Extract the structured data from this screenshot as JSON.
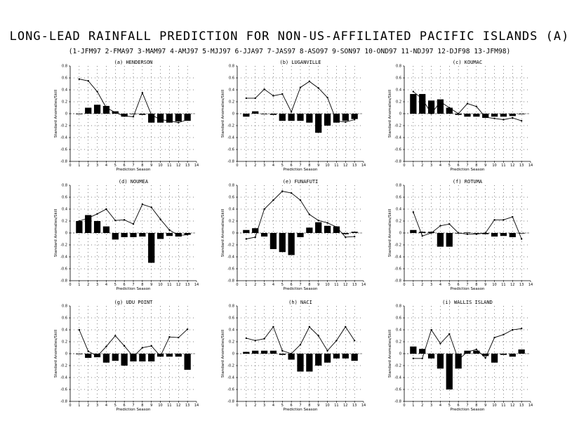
{
  "title": "LONG-LEAD RAINFALL PREDICTION FOR NON-US-AFFILIATED PACIFIC ISLANDS (A)",
  "season_key": "(1-JFM97 2-FMA97 3-MAM97 4-AMJ97 5-MJJ97 6-JJA97 7-JAS97 8-ASO97 9-SON97 10-OND97 11-NDJ97 12-DJF98 13-JFM98)",
  "xlabel": "Prediction Season",
  "ylabel": "Standard Anomalies/Skill",
  "x_ticks": [
    "0",
    "1",
    "2",
    "3",
    "4",
    "5",
    "6",
    "7",
    "8",
    "9",
    "10",
    "11",
    "12",
    "13",
    "14"
  ],
  "colors": {
    "bars": "#000000",
    "line": "#000000",
    "grid": "#000000",
    "background": "#ffffff"
  },
  "chart_data": [
    {
      "type": "bar",
      "title": "(a) HENDERSON",
      "xlim": [
        0,
        14
      ],
      "ylim": [
        -0.8,
        0.8
      ],
      "y_ticks": [
        "-0.8",
        "-0.6",
        "-0.4",
        "-0.2",
        "0",
        "0.2",
        "0.4",
        "0.6",
        "0.8"
      ],
      "x": [
        1,
        2,
        3,
        4,
        5,
        6,
        7,
        8,
        9,
        10,
        11,
        12,
        13
      ],
      "series": [
        {
          "kind": "bar",
          "values": [
            0,
            0.1,
            0.15,
            0.13,
            0.04,
            -0.05,
            0,
            -0.02,
            -0.15,
            -0.15,
            -0.15,
            -0.13,
            -0.12
          ]
        },
        {
          "kind": "line",
          "values": [
            0.58,
            0.55,
            0.37,
            0.1,
            0.02,
            -0.04,
            -0.05,
            0.35,
            -0.02,
            -0.1,
            -0.12,
            -0.15,
            -0.1
          ]
        }
      ]
    },
    {
      "type": "bar",
      "title": "(b) LUGANVILLE",
      "xlim": [
        0,
        14
      ],
      "ylim": [
        -0.8,
        0.8
      ],
      "y_ticks": [
        "-0.8",
        "-0.6",
        "-0.4",
        "-0.2",
        "0",
        "0.2",
        "0.4",
        "0.6",
        "0.8"
      ],
      "x": [
        1,
        2,
        3,
        4,
        5,
        6,
        7,
        8,
        9,
        10,
        11,
        12,
        13
      ],
      "series": [
        {
          "kind": "bar",
          "values": [
            -0.05,
            0.04,
            -0.01,
            -0.02,
            -0.12,
            -0.12,
            -0.12,
            -0.15,
            -0.32,
            -0.2,
            -0.15,
            -0.12,
            -0.09
          ]
        },
        {
          "kind": "line",
          "values": [
            0.26,
            0.26,
            0.41,
            0.3,
            0.33,
            0.03,
            0.44,
            0.54,
            0.43,
            0.27,
            -0.12,
            -0.14,
            -0.1
          ]
        }
      ]
    },
    {
      "type": "bar",
      "title": "(c) KOUMAC",
      "xlim": [
        0,
        14
      ],
      "ylim": [
        -0.8,
        0.8
      ],
      "y_ticks": [
        "-0.8",
        "-0.6",
        "-0.4",
        "-0.2",
        "0",
        "0.2",
        "0.4",
        "0.6",
        "0.8"
      ],
      "x": [
        1,
        2,
        3,
        4,
        5,
        6,
        7,
        8,
        9,
        10,
        11,
        12,
        13
      ],
      "series": [
        {
          "kind": "bar",
          "values": [
            0.33,
            0.33,
            0.22,
            0.24,
            0.1,
            -0.02,
            -0.05,
            -0.05,
            -0.07,
            -0.05,
            -0.05,
            -0.04,
            -0.01
          ]
        },
        {
          "kind": "line",
          "values": [
            0.37,
            0.25,
            0.0,
            0.2,
            0.1,
            0.0,
            0.17,
            0.12,
            -0.06,
            -0.08,
            -0.1,
            -0.07,
            -0.12
          ]
        }
      ]
    },
    {
      "type": "bar",
      "title": "(d) NOUMEA",
      "xlim": [
        0,
        14
      ],
      "ylim": [
        -0.8,
        0.8
      ],
      "y_ticks": [
        "-0.8",
        "-0.6",
        "-0.4",
        "-0.2",
        "0",
        "0.2",
        "0.4",
        "0.6",
        "0.8"
      ],
      "x": [
        1,
        2,
        3,
        4,
        5,
        6,
        7,
        8,
        9,
        10,
        11,
        12,
        13
      ],
      "series": [
        {
          "kind": "bar",
          "values": [
            0.2,
            0.3,
            0.2,
            0.11,
            -0.11,
            -0.07,
            -0.07,
            -0.06,
            -0.5,
            -0.1,
            -0.05,
            -0.06,
            -0.03
          ]
        },
        {
          "kind": "line",
          "values": [
            0.2,
            0.25,
            0.32,
            0.4,
            0.21,
            0.22,
            0.15,
            0.48,
            0.43,
            0.23,
            0.05,
            -0.04,
            -0.03
          ]
        }
      ]
    },
    {
      "type": "bar",
      "title": "(e) FUNAFUTI",
      "xlim": [
        0,
        14
      ],
      "ylim": [
        -0.8,
        0.8
      ],
      "y_ticks": [
        "-0.8",
        "-0.6",
        "-0.4",
        "-0.2",
        "0",
        "0.2",
        "0.4",
        "0.6",
        "0.8"
      ],
      "x": [
        1,
        2,
        3,
        4,
        5,
        6,
        7,
        8,
        9,
        10,
        11,
        12,
        13
      ],
      "series": [
        {
          "kind": "bar",
          "values": [
            0.05,
            0.08,
            -0.06,
            -0.27,
            -0.32,
            -0.37,
            -0.07,
            0.09,
            0.18,
            0.12,
            0.11,
            -0.02,
            0.02
          ]
        },
        {
          "kind": "line",
          "values": [
            -0.1,
            -0.07,
            0.4,
            0.55,
            0.7,
            0.67,
            0.55,
            0.31,
            0.21,
            0.17,
            0.1,
            -0.07,
            -0.06
          ]
        }
      ]
    },
    {
      "type": "bar",
      "title": "(f) ROTUMA",
      "xlim": [
        0,
        14
      ],
      "ylim": [
        -0.8,
        0.8
      ],
      "y_ticks": [
        "-0.8",
        "-0.6",
        "-0.4",
        "-0.2",
        "0",
        "0.2",
        "0.4",
        "0.6",
        "0.8"
      ],
      "x": [
        1,
        2,
        3,
        4,
        5,
        6,
        7,
        8,
        9,
        10,
        11,
        12,
        13
      ],
      "series": [
        {
          "kind": "bar",
          "values": [
            0.05,
            0.02,
            0.02,
            -0.23,
            -0.23,
            0.0,
            0.01,
            0.0,
            -0.02,
            -0.06,
            -0.05,
            -0.07,
            -0.01
          ]
        },
        {
          "kind": "line",
          "values": [
            0.35,
            -0.05,
            0.0,
            0.12,
            0.15,
            0.0,
            -0.02,
            -0.02,
            0.0,
            0.22,
            0.22,
            0.27,
            -0.1
          ]
        }
      ]
    },
    {
      "type": "bar",
      "title": "(g) UDU POINT",
      "xlim": [
        0,
        14
      ],
      "ylim": [
        -0.8,
        0.8
      ],
      "y_ticks": [
        "-0.8",
        "-0.6",
        "-0.4",
        "-0.2",
        "0",
        "0.2",
        "0.4",
        "0.6",
        "0.8"
      ],
      "x": [
        1,
        2,
        3,
        4,
        5,
        6,
        7,
        8,
        9,
        10,
        11,
        12,
        13
      ],
      "series": [
        {
          "kind": "bar",
          "values": [
            0,
            -0.07,
            -0.06,
            -0.15,
            -0.12,
            -0.2,
            -0.13,
            -0.13,
            -0.13,
            -0.05,
            -0.05,
            -0.05,
            -0.27
          ]
        },
        {
          "kind": "line",
          "values": [
            0.4,
            0.04,
            -0.04,
            0.12,
            0.3,
            0.13,
            -0.05,
            0.1,
            0.13,
            -0.04,
            0.28,
            0.27,
            0.41
          ]
        }
      ]
    },
    {
      "type": "bar",
      "title": "(h) NACI",
      "xlim": [
        0,
        14
      ],
      "ylim": [
        -0.8,
        0.8
      ],
      "y_ticks": [
        "-0.8",
        "-0.6",
        "-0.4",
        "-0.2",
        "0",
        "0.2",
        "0.4",
        "0.6",
        "0.8"
      ],
      "x": [
        1,
        2,
        3,
        4,
        5,
        6,
        7,
        8,
        9,
        10,
        11,
        12,
        13
      ],
      "series": [
        {
          "kind": "bar",
          "values": [
            0.03,
            0.05,
            0.05,
            0.05,
            -0.02,
            -0.1,
            -0.3,
            -0.3,
            -0.2,
            -0.15,
            -0.08,
            -0.08,
            -0.12
          ]
        },
        {
          "kind": "line",
          "values": [
            0.26,
            0.22,
            0.25,
            0.45,
            0.05,
            0.0,
            0.15,
            0.45,
            0.3,
            0.05,
            0.22,
            0.45,
            0.22
          ]
        }
      ]
    },
    {
      "type": "bar",
      "title": "(i) WALLIS ISLAND",
      "xlim": [
        0,
        14
      ],
      "ylim": [
        -0.8,
        0.8
      ],
      "y_ticks": [
        "-0.8",
        "-0.6",
        "-0.4",
        "-0.2",
        "0",
        "0.2",
        "0.4",
        "0.6",
        "0.8"
      ],
      "x": [
        1,
        2,
        3,
        4,
        5,
        6,
        7,
        8,
        9,
        10,
        11,
        12,
        13
      ],
      "series": [
        {
          "kind": "bar",
          "values": [
            0.12,
            0.08,
            -0.08,
            -0.25,
            -0.6,
            -0.25,
            0.05,
            0.05,
            -0.04,
            -0.15,
            -0.02,
            -0.05,
            0.07
          ]
        },
        {
          "kind": "line",
          "values": [
            -0.08,
            -0.08,
            0.4,
            0.17,
            0.33,
            -0.1,
            0.03,
            0.07,
            -0.07,
            0.27,
            0.32,
            0.4,
            0.42
          ]
        }
      ]
    }
  ]
}
